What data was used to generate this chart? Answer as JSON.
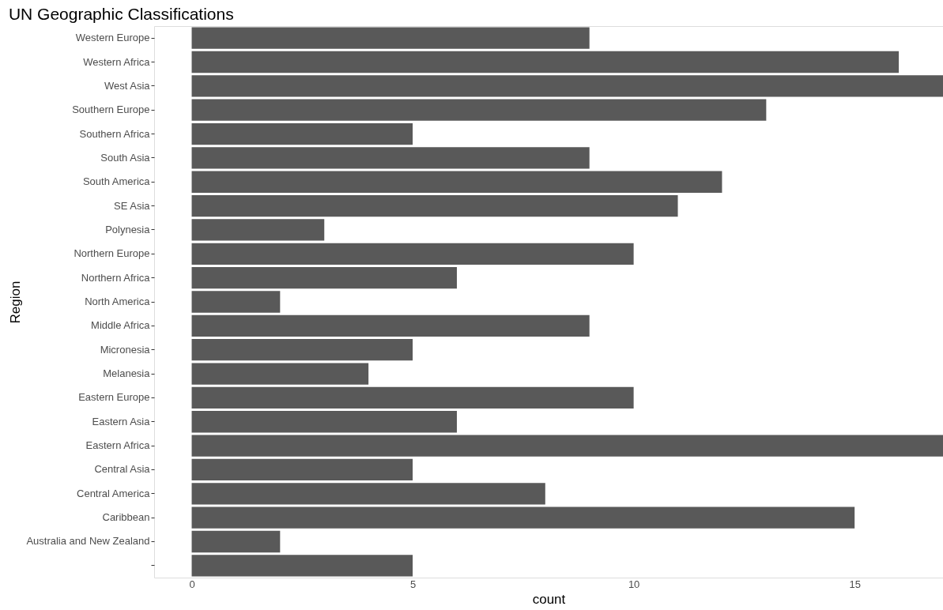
{
  "chart_data": {
    "type": "bar",
    "orientation": "horizontal",
    "title": "UN Geographic Classifications",
    "xlabel": "count",
    "ylabel": "Region",
    "categories": [
      "Western Europe",
      "Western Africa",
      "West Asia",
      "Southern Europe",
      "Southern Africa",
      "South Asia",
      "South America",
      "SE Asia",
      "Polynesia",
      "Northern Europe",
      "Northern Africa",
      "North America",
      "Middle Africa",
      "Micronesia",
      "Melanesia",
      "Eastern Europe",
      "Eastern Asia",
      "Eastern Africa",
      "Central Asia",
      "Central America",
      "Caribbean",
      "Australia and New Zealand",
      null
    ],
    "values": [
      9,
      16,
      17,
      13,
      5,
      9,
      12,
      11,
      3,
      10,
      6,
      2,
      9,
      5,
      4,
      10,
      6,
      17,
      5,
      8,
      15,
      2,
      5
    ],
    "color": "#595959",
    "xlim": [
      -0.85,
      17
    ],
    "xticks": [
      0,
      5,
      10,
      15
    ],
    "grid": false
  }
}
